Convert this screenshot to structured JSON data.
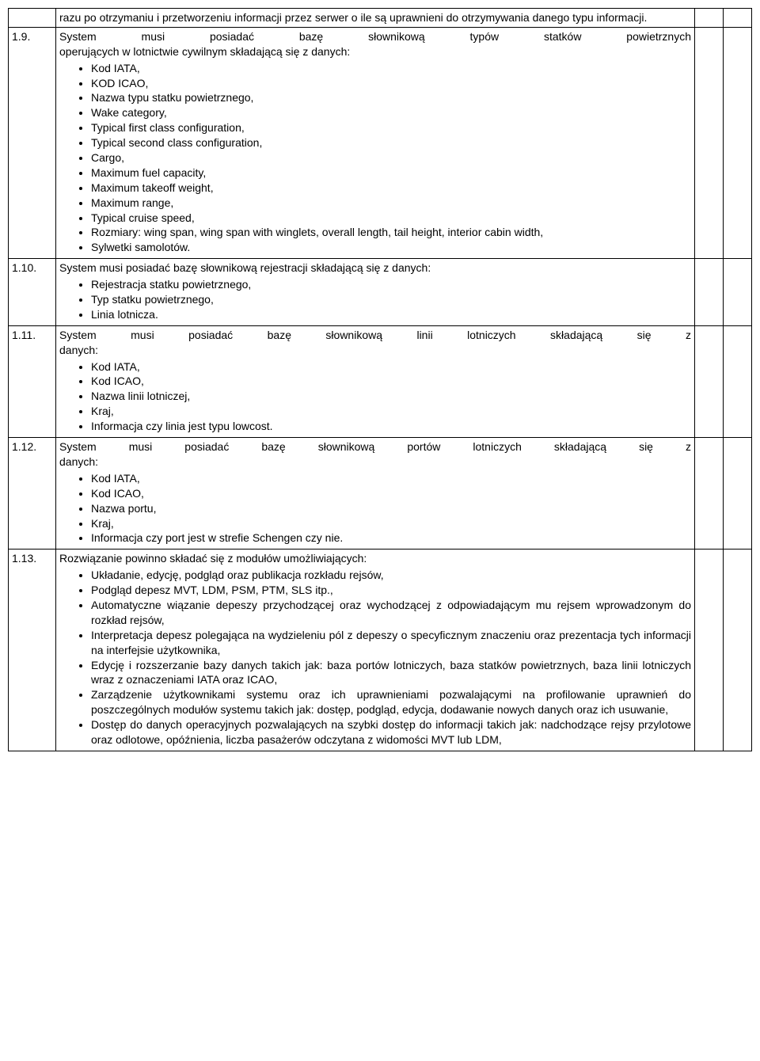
{
  "rows": [
    {
      "num": "",
      "intro": "razu po otrzymaniu i przetworzeniu informacji przez serwer o ile są uprawnieni do otrzymywania danego typu informacji.",
      "bullets": [],
      "chk1": false,
      "chk2": true
    },
    {
      "num": "1.9.",
      "intro_just": "System musi posiadać bazę słownikową typów statków powietrznych",
      "intro_cont": "operujących w lotnictwie cywilnym składającą się z danych:",
      "bullets": [
        "Kod IATA,",
        "KOD ICAO,",
        "Nazwa typu statku powietrznego,",
        "Wake category,",
        "Typical first class configuration,",
        "Typical second class configuration,",
        "Cargo,",
        "Maximum fuel capacity,",
        "Maximum takeoff weight,",
        "Maximum range,",
        "Typical cruise speed,",
        "Rozmiary: wing span, wing span with winglets, overall length, tail height, interior cabin width,",
        "Sylwetki samolotów."
      ],
      "chk1": false,
      "chk2": true
    },
    {
      "num": "1.10.",
      "intro": "System musi posiadać bazę słownikową rejestracji składającą się z danych:",
      "bullets": [
        "Rejestracja statku powietrznego,",
        "Typ statku powietrznego,",
        "Linia lotnicza."
      ],
      "chk1": false,
      "chk2": true
    },
    {
      "num": "1.11.",
      "intro_just": "System musi posiadać bazę słownikową linii lotniczych składającą się z",
      "intro_cont": "danych:",
      "bullets": [
        "Kod IATA,",
        "Kod ICAO,",
        "Nazwa linii lotniczej,",
        "Kraj,",
        "Informacja czy linia jest typu lowcost."
      ],
      "chk1": false,
      "chk2": true
    },
    {
      "num": "1.12.",
      "intro_just": "System musi posiadać bazę słownikową portów lotniczych składającą się z",
      "intro_cont": "danych:",
      "bullets": [
        "Kod IATA,",
        "Kod ICAO,",
        "Nazwa portu,",
        "Kraj,",
        "Informacja czy port jest w strefie Schengen czy nie."
      ],
      "chk1": false,
      "chk2": true
    },
    {
      "num": "1.13.",
      "intro": "Rozwiązanie powinno składać się z modułów umożliwiających:",
      "bullets": [
        "Układanie, edycję, podgląd oraz publikacja rozkładu rejsów,",
        "Podgląd depesz MVT, LDM, PSM, PTM, SLS itp.,",
        "Automatyczne wiązanie depeszy przychodzącej oraz wychodzącej z odpowiadającym mu rejsem wprowadzonym do rozkład rejsów,",
        "Interpretacja depesz polegająca na wydzieleniu pól z depeszy o specyficznym znaczeniu oraz prezentacja tych informacji na interfejsie użytkownika,",
        "Edycję i rozszerzanie bazy danych takich jak: baza portów lotniczych, baza statków powietrznych, baza linii lotniczych wraz z oznaczeniami IATA oraz ICAO,",
        "Zarządzenie użytkownikami systemu oraz ich uprawnieniami pozwalającymi na profilowanie uprawnień do poszczególnych modułów systemu takich jak: dostęp, podgląd, edycja, dodawanie nowych danych oraz ich usuwanie,",
        "Dostęp do danych operacyjnych pozwalających na szybki dostęp do informacji takich jak: nadchodzące rejsy przylotowe oraz odlotowe, opóźnienia, liczba pasażerów odczytana z widomości MVT lub LDM,"
      ],
      "chk1": false,
      "chk2": true
    }
  ]
}
